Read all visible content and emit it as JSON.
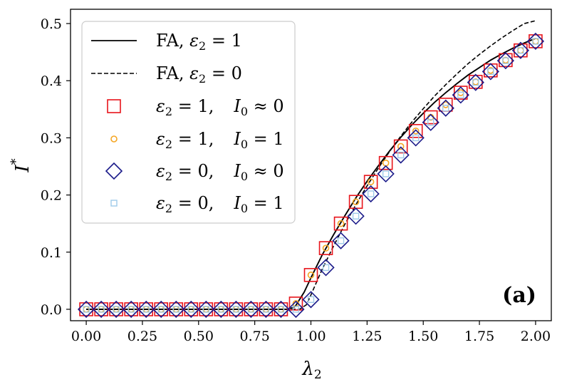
{
  "chart_data": {
    "type": "scatter",
    "title": "",
    "xlabel": "λ2",
    "ylabel": "I*",
    "xlim": [
      -0.07,
      2.07
    ],
    "ylim": [
      -0.02,
      0.525
    ],
    "grid": false,
    "legend_position": "top-left",
    "panel_label": "(a)",
    "xticks": [
      0.0,
      0.25,
      0.5,
      0.75,
      1.0,
      1.25,
      1.5,
      1.75,
      2.0
    ],
    "xtick_labels": [
      "0.00",
      "0.25",
      "0.50",
      "0.75",
      "1.00",
      "1.25",
      "1.50",
      "1.75",
      "2.00"
    ],
    "yticks": [
      0.0,
      0.1,
      0.2,
      0.3,
      0.4,
      0.5
    ],
    "ytick_labels": [
      "0.0",
      "0.1",
      "0.2",
      "0.3",
      "0.4",
      "0.5"
    ],
    "lines": [
      {
        "name": "FA, ε2=1",
        "style": "solid",
        "color": "#000000",
        "x": [
          0.0,
          0.9,
          0.93,
          0.97,
          1.0,
          1.05,
          1.1,
          1.15,
          1.2,
          1.25,
          1.3,
          1.35,
          1.4,
          1.45,
          1.5,
          1.55,
          1.6,
          1.65,
          1.7,
          1.75,
          1.8,
          1.85,
          1.9,
          1.95,
          2.0
        ],
        "y": [
          0.0,
          0.0,
          0.005,
          0.03,
          0.055,
          0.095,
          0.13,
          0.163,
          0.195,
          0.224,
          0.251,
          0.277,
          0.301,
          0.323,
          0.343,
          0.362,
          0.379,
          0.395,
          0.41,
          0.423,
          0.436,
          0.447,
          0.457,
          0.466,
          0.474
        ]
      },
      {
        "name": "FA, ε2=0",
        "style": "dashed",
        "color": "#000000",
        "x": [
          0.0,
          0.95,
          0.98,
          1.0,
          1.05,
          1.1,
          1.15,
          1.2,
          1.25,
          1.3,
          1.35,
          1.4,
          1.45,
          1.5,
          1.55,
          1.6,
          1.65,
          1.7,
          1.75,
          1.8,
          1.85,
          1.9,
          1.95,
          2.0
        ],
        "y": [
          0.0,
          0.0,
          0.008,
          0.025,
          0.07,
          0.11,
          0.148,
          0.183,
          0.216,
          0.247,
          0.276,
          0.303,
          0.328,
          0.351,
          0.373,
          0.393,
          0.412,
          0.43,
          0.446,
          0.461,
          0.475,
          0.488,
          0.5,
          0.505
        ]
      }
    ],
    "x": [
      0.0,
      0.0667,
      0.1333,
      0.2,
      0.2667,
      0.3333,
      0.4,
      0.4667,
      0.5333,
      0.6,
      0.6667,
      0.7333,
      0.8,
      0.8667,
      0.9333,
      1.0,
      1.0667,
      1.1333,
      1.2,
      1.2667,
      1.3333,
      1.4,
      1.4667,
      1.5333,
      1.6,
      1.6667,
      1.7333,
      1.8,
      1.8667,
      1.9333,
      2.0
    ],
    "series": [
      {
        "name": "ε2=1, I0≈0",
        "marker": "square",
        "color": "#e8141b",
        "values": [
          0.0,
          0.0,
          0.0,
          0.0,
          0.0,
          0.0,
          0.0,
          0.0,
          0.0,
          0.0,
          0.0,
          0.0,
          0.0,
          0.0,
          0.01,
          0.06,
          0.107,
          0.15,
          0.188,
          0.223,
          0.256,
          0.285,
          0.312,
          0.336,
          0.358,
          0.379,
          0.398,
          0.418,
          0.436,
          0.453,
          0.469
        ]
      },
      {
        "name": "ε2=1, I0=1",
        "marker": "circle",
        "color": "#f5a623",
        "values": [
          0.0,
          0.0,
          0.0,
          0.0,
          0.0,
          0.0,
          0.0,
          0.0,
          0.0,
          0.0,
          0.0,
          0.0,
          0.0,
          0.0,
          0.01,
          0.06,
          0.107,
          0.15,
          0.188,
          0.223,
          0.256,
          0.285,
          0.312,
          0.336,
          0.358,
          0.379,
          0.398,
          0.418,
          0.436,
          0.453,
          0.469
        ]
      },
      {
        "name": "ε2=0, I0≈0",
        "marker": "diamond",
        "color": "#1b1b8a",
        "values": [
          0.0,
          0.0,
          0.0,
          0.0,
          0.0,
          0.0,
          0.0,
          0.0,
          0.0,
          0.0,
          0.0,
          0.0,
          0.0,
          0.0,
          0.0,
          0.017,
          0.073,
          0.12,
          0.163,
          0.202,
          0.237,
          0.27,
          0.3,
          0.327,
          0.352,
          0.375,
          0.397,
          0.416,
          0.435,
          0.453,
          0.469
        ]
      },
      {
        "name": "ε2=0, I0=1",
        "marker": "small-square",
        "color": "#9ecae9",
        "values": [
          0.0,
          0.0,
          0.0,
          0.0,
          0.0,
          0.0,
          0.0,
          0.0,
          0.0,
          0.0,
          0.0,
          0.0,
          0.0,
          0.0,
          0.0,
          0.017,
          0.073,
          0.12,
          0.163,
          0.202,
          0.237,
          0.27,
          0.3,
          0.327,
          0.352,
          0.375,
          0.397,
          0.416,
          0.435,
          0.453,
          0.469
        ]
      }
    ],
    "legend": {
      "fa_prefix": "FA, ",
      "eps": "ε",
      "sub2": "2",
      "eq1": " = 1",
      "eq0": " = 0",
      "comma": ",",
      "i0": "I",
      "sub0": "0",
      "approx0": " ≈ 0",
      "equals1": " = 1"
    }
  }
}
